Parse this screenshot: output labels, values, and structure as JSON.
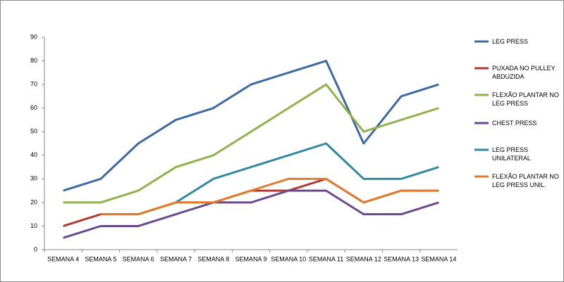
{
  "chart_data": {
    "type": "line",
    "categories": [
      "SEMANA 4",
      "SEMANA 5",
      "SEMANA 6",
      "SEMANA 7",
      "SEMANA 8",
      "SEMANA 9",
      "SEMANA 10",
      "SEMANA 11",
      "SEMANA 12",
      "SEMANA 13",
      "SEMANA 14"
    ],
    "series": [
      {
        "name": "LEG PRESS",
        "color": "#3c68a3",
        "values": [
          25,
          30,
          45,
          55,
          60,
          70,
          75,
          80,
          45,
          65,
          70
        ]
      },
      {
        "name": "PUXADA NO PULLEY ABDUZIDA",
        "color": "#b03a32",
        "values": [
          10,
          15,
          15,
          20,
          20,
          25,
          25,
          30,
          20,
          25,
          25
        ]
      },
      {
        "name": "FLEXÃO PLANTAR NO LEG PRESS",
        "color": "#8fb24b",
        "values": [
          20,
          20,
          25,
          35,
          40,
          50,
          60,
          70,
          50,
          55,
          60
        ]
      },
      {
        "name": "CHEST PRESS",
        "color": "#6b4a8b",
        "values": [
          5,
          10,
          10,
          15,
          20,
          20,
          25,
          25,
          15,
          15,
          20
        ]
      },
      {
        "name": "LEG PRESS UNILATERAL",
        "color": "#3189a0",
        "values": [
          null,
          null,
          null,
          20,
          30,
          35,
          40,
          45,
          30,
          30,
          35
        ]
      },
      {
        "name": "FLEXÃO PLANTAR NO LEG PRESS UNIL.",
        "color": "#e07d2c",
        "values": [
          null,
          15,
          15,
          20,
          20,
          25,
          30,
          30,
          20,
          25,
          25
        ]
      }
    ],
    "ylim": [
      0,
      90
    ],
    "yticks": [
      0,
      10,
      20,
      30,
      40,
      50,
      60,
      70,
      80,
      90
    ],
    "grid": false,
    "legend": "right"
  }
}
